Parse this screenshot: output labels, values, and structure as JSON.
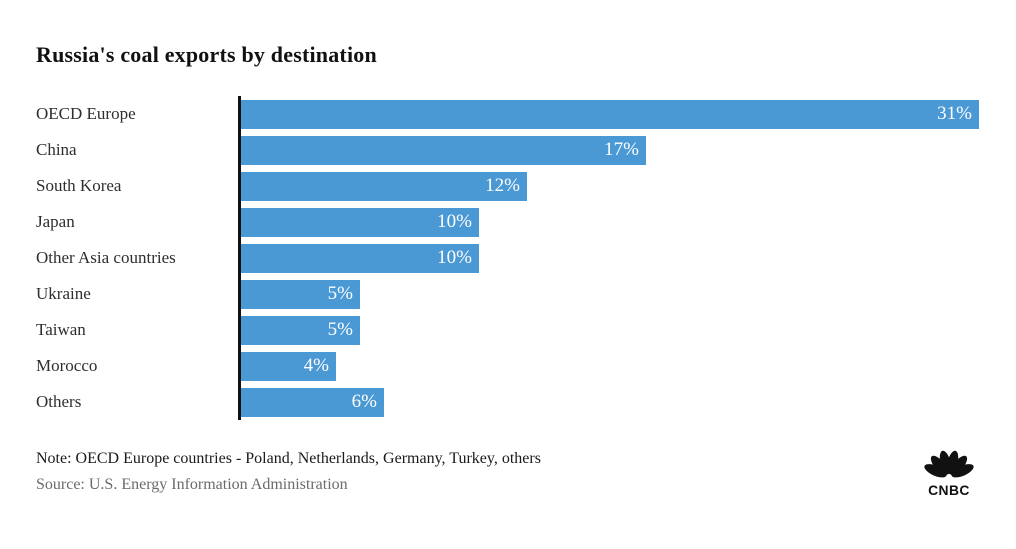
{
  "header": {
    "title": "Russia's coal exports by destination"
  },
  "chart_data": {
    "type": "bar",
    "orientation": "horizontal",
    "title": "Russia's coal exports by destination",
    "categories": [
      "OECD Europe",
      "China",
      "South Korea",
      "Japan",
      "Other Asia countries",
      "Ukraine",
      "Taiwan",
      "Morocco",
      "Others"
    ],
    "values": [
      31,
      17,
      12,
      10,
      10,
      5,
      5,
      4,
      6
    ],
    "value_labels": [
      "31%",
      "17%",
      "12%",
      "10%",
      "10%",
      "5%",
      "5%",
      "4%",
      "6%"
    ],
    "xlim": [
      0,
      31
    ],
    "grid": false,
    "legend_position": "none",
    "value_label_position": "inside-end",
    "bar_color": "#4a98d4",
    "axis_color": "#111111",
    "value_label_color": "#ffffff"
  },
  "footer": {
    "note": "Note: OECD Europe countries - Poland, Netherlands, Germany, Turkey, others",
    "source": "Source: U.S. Energy Information Administration",
    "brand": "CNBC"
  }
}
